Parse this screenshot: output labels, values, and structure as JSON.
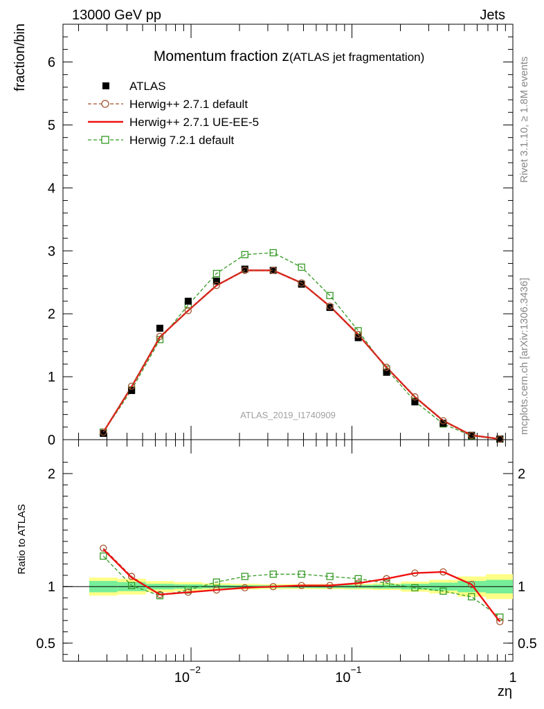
{
  "header": {
    "left": "13000 GeV pp",
    "right": "Jets"
  },
  "side_labels": {
    "rivet": "Rivet 3.1.10, ≥ 1.8M events",
    "mcplots": "mcplots.cern.ch [arXiv:1306.3436]"
  },
  "chart_data": [
    {
      "type": "scatter",
      "title": "Momentum fraction z",
      "title_suffix": "(ATLAS jet fragmentation)",
      "ylabel": "fraction/bin",
      "watermark": "ATLAS_2019_I1740909",
      "x_scale": "log",
      "xlim": [
        0.0016,
        1.0
      ],
      "ylim": [
        0,
        6.6
      ],
      "y_ticks": [
        0,
        1,
        2,
        3,
        4,
        5,
        6
      ],
      "y_tick_labels": [
        "0",
        "1",
        "2",
        "3",
        "4",
        "5",
        "6"
      ],
      "legend_position": "top-left",
      "x": [
        0.00285,
        0.00427,
        0.0064,
        0.0096,
        0.0144,
        0.0216,
        0.0324,
        0.0486,
        0.0729,
        0.1094,
        0.1641,
        0.2461,
        0.3691,
        0.5537,
        0.8305
      ],
      "series": [
        {
          "name": "ATLAS",
          "style": "data",
          "color": "#000000",
          "values": [
            0.1,
            0.78,
            1.77,
            2.2,
            2.52,
            2.71,
            2.69,
            2.47,
            2.1,
            1.62,
            1.07,
            0.6,
            0.26,
            0.07,
            0.01
          ]
        },
        {
          "name": "Herwig++ 2.7.1 default",
          "style": "circle-dashed",
          "color": "#a0522d",
          "values": [
            0.12,
            0.85,
            1.64,
            2.05,
            2.45,
            2.69,
            2.69,
            2.49,
            2.12,
            1.67,
            1.15,
            0.68,
            0.3,
            0.07,
            0.01
          ]
        },
        {
          "name": "Herwig++ 2.7.1 UE-EE-5",
          "style": "solid",
          "color": "#ee1111",
          "values": [
            0.12,
            0.84,
            1.63,
            2.05,
            2.45,
            2.69,
            2.69,
            2.49,
            2.12,
            1.67,
            1.15,
            0.68,
            0.3,
            0.07,
            0.01
          ]
        },
        {
          "name": "Herwig 7.2.1 default",
          "style": "square-dashed",
          "color": "#339922",
          "values": [
            0.12,
            0.79,
            1.59,
            2.14,
            2.64,
            2.94,
            2.97,
            2.74,
            2.29,
            1.73,
            1.12,
            0.61,
            0.25,
            0.06,
            0.01
          ]
        }
      ]
    },
    {
      "type": "scatter",
      "ylabel": "Ratio to ATLAS",
      "xlabel": "zη",
      "x_scale": "log",
      "xlim": [
        0.0016,
        1.0
      ],
      "ylim": [
        0.34,
        2.3
      ],
      "y_ticks": [
        0.5,
        1,
        2
      ],
      "y_tick_labels": [
        "0.5",
        "1",
        "2"
      ],
      "x_tick_labels": [
        {
          "value": 0.01,
          "base": "10",
          "exp": "−2"
        },
        {
          "value": 0.1,
          "base": "10",
          "exp": "−1"
        },
        {
          "value": 1,
          "base": "1",
          "exp": ""
        }
      ],
      "band_edges": [
        0.00233,
        0.00349,
        0.00524,
        0.00786,
        0.01179,
        0.01768,
        0.02652,
        0.03978,
        0.05967,
        0.08951,
        0.13426,
        0.20139,
        0.30209,
        0.45313,
        0.6797,
        1.0
      ],
      "stat_band": [
        0.05,
        0.04,
        0.025,
        0.02,
        0.015,
        0.012,
        0.012,
        0.012,
        0.013,
        0.015,
        0.018,
        0.025,
        0.035,
        0.05,
        0.06
      ],
      "total_band": [
        0.08,
        0.07,
        0.05,
        0.04,
        0.03,
        0.025,
        0.022,
        0.022,
        0.023,
        0.025,
        0.03,
        0.045,
        0.06,
        0.09,
        0.11
      ],
      "x": [
        0.00285,
        0.00427,
        0.0064,
        0.0096,
        0.0144,
        0.0216,
        0.0324,
        0.0486,
        0.0729,
        0.1094,
        0.1641,
        0.2461,
        0.3691,
        0.5537,
        0.8305
      ],
      "series": [
        {
          "name": "Herwig++ 2.7.1 default",
          "style": "circle-dashed",
          "color": "#a0522d",
          "values": [
            1.34,
            1.09,
            0.93,
            0.95,
            0.97,
            0.99,
            1.0,
            1.01,
            1.01,
            1.03,
            1.07,
            1.12,
            1.13,
            1.02,
            0.69
          ]
        },
        {
          "name": "Herwig++ 2.7.1 UE-EE-5",
          "style": "solid",
          "color": "#ee1111",
          "values": [
            1.33,
            1.08,
            0.93,
            0.95,
            0.97,
            0.99,
            1.0,
            1.01,
            1.01,
            1.03,
            1.07,
            1.12,
            1.13,
            1.02,
            0.69
          ]
        },
        {
          "name": "Herwig 7.2.1 default",
          "style": "square-dashed",
          "color": "#339922",
          "values": [
            1.27,
            1.01,
            0.92,
            0.97,
            1.04,
            1.09,
            1.11,
            1.11,
            1.09,
            1.07,
            1.03,
            0.99,
            0.96,
            0.91,
            0.73
          ]
        }
      ]
    }
  ]
}
